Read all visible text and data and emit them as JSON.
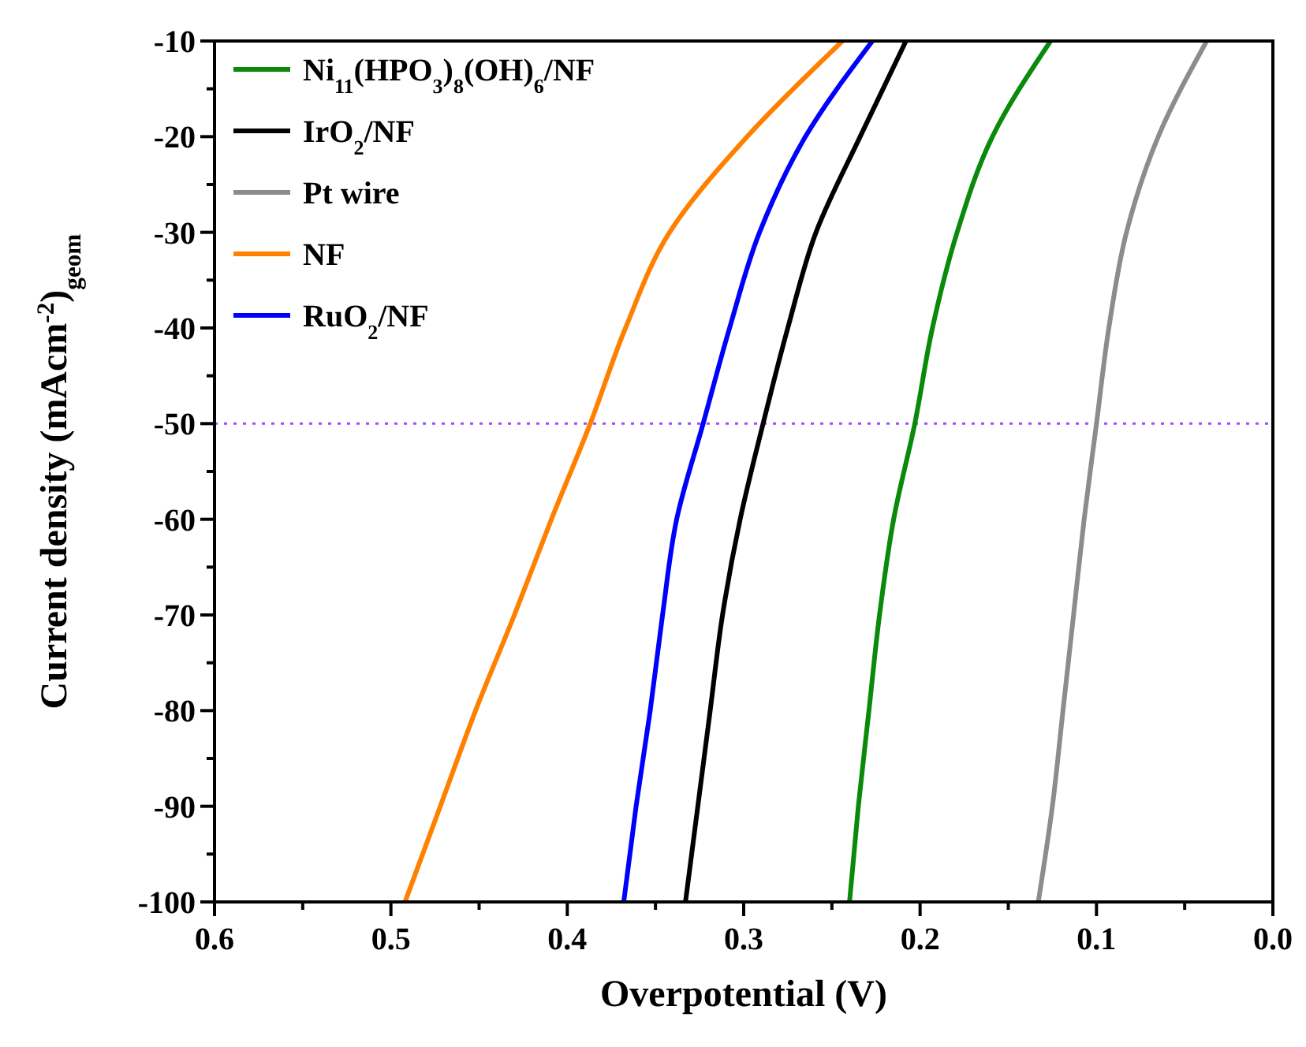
{
  "chart_data": {
    "type": "line",
    "xlabel": "Overpotential (V)",
    "ylabel": "Current density (mAcm$^{-2}$)$_{geom}$",
    "xlim": [
      0.6,
      0.0
    ],
    "ylim": [
      -100,
      -10
    ],
    "xticks": [
      {
        "value": 0.6,
        "label": "0.6"
      },
      {
        "value": 0.55,
        "label": null
      },
      {
        "value": 0.5,
        "label": "0.5"
      },
      {
        "value": 0.45,
        "label": null
      },
      {
        "value": 0.4,
        "label": "0.4"
      },
      {
        "value": 0.35,
        "label": null
      },
      {
        "value": 0.3,
        "label": "0.3"
      },
      {
        "value": 0.25,
        "label": null
      },
      {
        "value": 0.2,
        "label": "0.2"
      },
      {
        "value": 0.15,
        "label": null
      },
      {
        "value": 0.1,
        "label": "0.1"
      },
      {
        "value": 0.05,
        "label": null
      },
      {
        "value": 0,
        "label": "0.0"
      }
    ],
    "yticks": [
      -100,
      {
        "value": -95,
        "label": null
      },
      -90,
      {
        "value": -85,
        "label": null
      },
      -80,
      {
        "value": -75,
        "label": null
      },
      -70,
      {
        "value": -65,
        "label": null
      },
      -60,
      {
        "value": -55,
        "label": null
      },
      -50,
      {
        "value": -45,
        "label": null
      },
      -40,
      {
        "value": -35,
        "label": null
      },
      -30,
      {
        "value": -25,
        "label": null
      },
      -20,
      {
        "value": -15,
        "label": null
      },
      -10
    ],
    "legend": "top left",
    "grid": false,
    "marker": "none",
    "line_style": "solid",
    "ref_lines": [
      {
        "axis": "y",
        "value": -50,
        "label": null,
        "color": "#9b4dff",
        "line_style": "dotted"
      }
    ],
    "series": [
      {
        "name": "Ni$_{11}$(HPO$_{3}$)$_{8}$(OH)$_{6}$/NF",
        "color": "#0a8a0a",
        "x": [
          0.126,
          0.159,
          0.179,
          0.193,
          0.203,
          0.215,
          0.223,
          0.229,
          0.235,
          0.24
        ],
        "values": [
          -10,
          -20,
          -30,
          -40,
          -50,
          -60,
          -70,
          -80,
          -90,
          -100
        ]
      },
      {
        "name": "IrO$_{2}$/NF",
        "color": "#000000",
        "x": [
          0.208,
          0.234,
          0.259,
          0.275,
          0.289,
          0.302,
          0.312,
          0.319,
          0.326,
          0.333
        ],
        "values": [
          -10,
          -20,
          -30,
          -40,
          -50,
          -60,
          -70,
          -80,
          -90,
          -100
        ]
      },
      {
        "name": "Pt wire",
        "color": "#8c8c8c",
        "x": [
          0.0375,
          0.065,
          0.083,
          0.093,
          0.1,
          0.107,
          0.113,
          0.119,
          0.125,
          0.133
        ],
        "values": [
          -10,
          -20,
          -30,
          -40,
          -50,
          -60,
          -70,
          -80,
          -90,
          -100
        ]
      },
      {
        "name": "NF",
        "color": "#ff8000",
        "x": [
          0.244,
          0.298,
          0.342,
          0.367,
          0.387,
          0.409,
          0.43,
          0.452,
          0.472,
          0.492
        ],
        "values": [
          -10,
          -20,
          -30,
          -40,
          -50,
          -60,
          -70,
          -80,
          -90,
          -100
        ]
      },
      {
        "name": "RuO$_{2}$/NF",
        "color": "#0000ff",
        "x": [
          0.227,
          0.265,
          0.291,
          0.308,
          0.323,
          0.338,
          0.346,
          0.353,
          0.361,
          0.368
        ],
        "values": [
          -10,
          -20,
          -30,
          -40,
          -50,
          -60,
          -70,
          -80,
          -90,
          -100
        ]
      }
    ]
  }
}
